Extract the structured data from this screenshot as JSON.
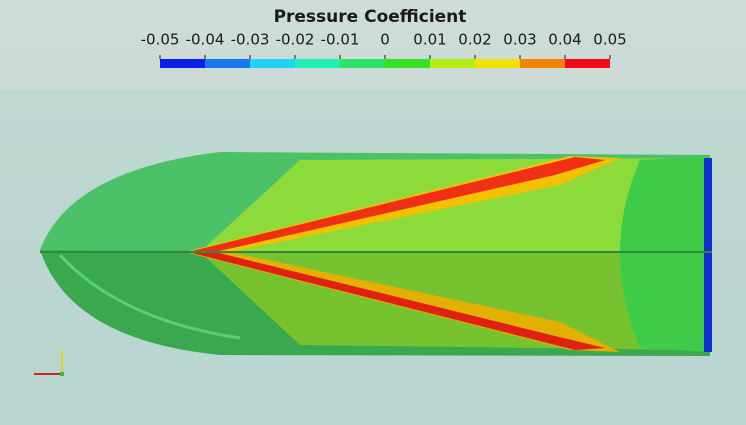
{
  "colorbar": {
    "title": "Pressure Coefficient",
    "range": [
      -0.05,
      0.05
    ],
    "ticks": [
      -0.05,
      -0.04,
      -0.03,
      -0.02,
      -0.01,
      0,
      0.01,
      0.02,
      0.03,
      0.04,
      0.05
    ],
    "colors": [
      "#0a1ee6",
      "#1a78f0",
      "#22d2f2",
      "#22f0b4",
      "#2ee266",
      "#38e024",
      "#b4ee12",
      "#f2e000",
      "#f28200",
      "#f00a14"
    ]
  }
}
